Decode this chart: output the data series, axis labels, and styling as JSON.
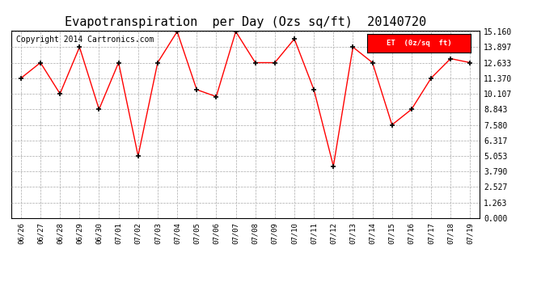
{
  "title": "Evapotranspiration  per Day (Ozs sq/ft)  20140720",
  "copyright": "Copyright 2014 Cartronics.com",
  "legend_label": "ET  (0z/sq  ft)",
  "x_labels": [
    "06/26",
    "06/27",
    "06/28",
    "06/29",
    "06/30",
    "07/01",
    "07/02",
    "07/03",
    "07/04",
    "07/05",
    "07/06",
    "07/07",
    "07/08",
    "07/09",
    "07/10",
    "07/11",
    "07/12",
    "07/13",
    "07/14",
    "07/15",
    "07/16",
    "07/17",
    "07/18",
    "07/19"
  ],
  "y_values": [
    11.37,
    12.633,
    10.107,
    13.897,
    8.843,
    12.633,
    5.053,
    12.633,
    15.16,
    10.44,
    9.874,
    15.16,
    12.633,
    12.633,
    14.56,
    10.44,
    4.22,
    13.897,
    12.633,
    7.58,
    8.843,
    11.37,
    12.96,
    12.633
  ],
  "line_color": "red",
  "marker": "+",
  "marker_color": "black",
  "background_color": "#ffffff",
  "grid_color": "#aaaaaa",
  "y_ticks": [
    0.0,
    1.263,
    2.527,
    3.79,
    5.053,
    6.317,
    7.58,
    8.843,
    10.107,
    11.37,
    12.633,
    13.897,
    15.16
  ],
  "ylim": [
    0.0,
    15.16
  ],
  "title_fontsize": 11,
  "copyright_fontsize": 7,
  "legend_bg": "#ff0000",
  "legend_fg": "#ffffff"
}
